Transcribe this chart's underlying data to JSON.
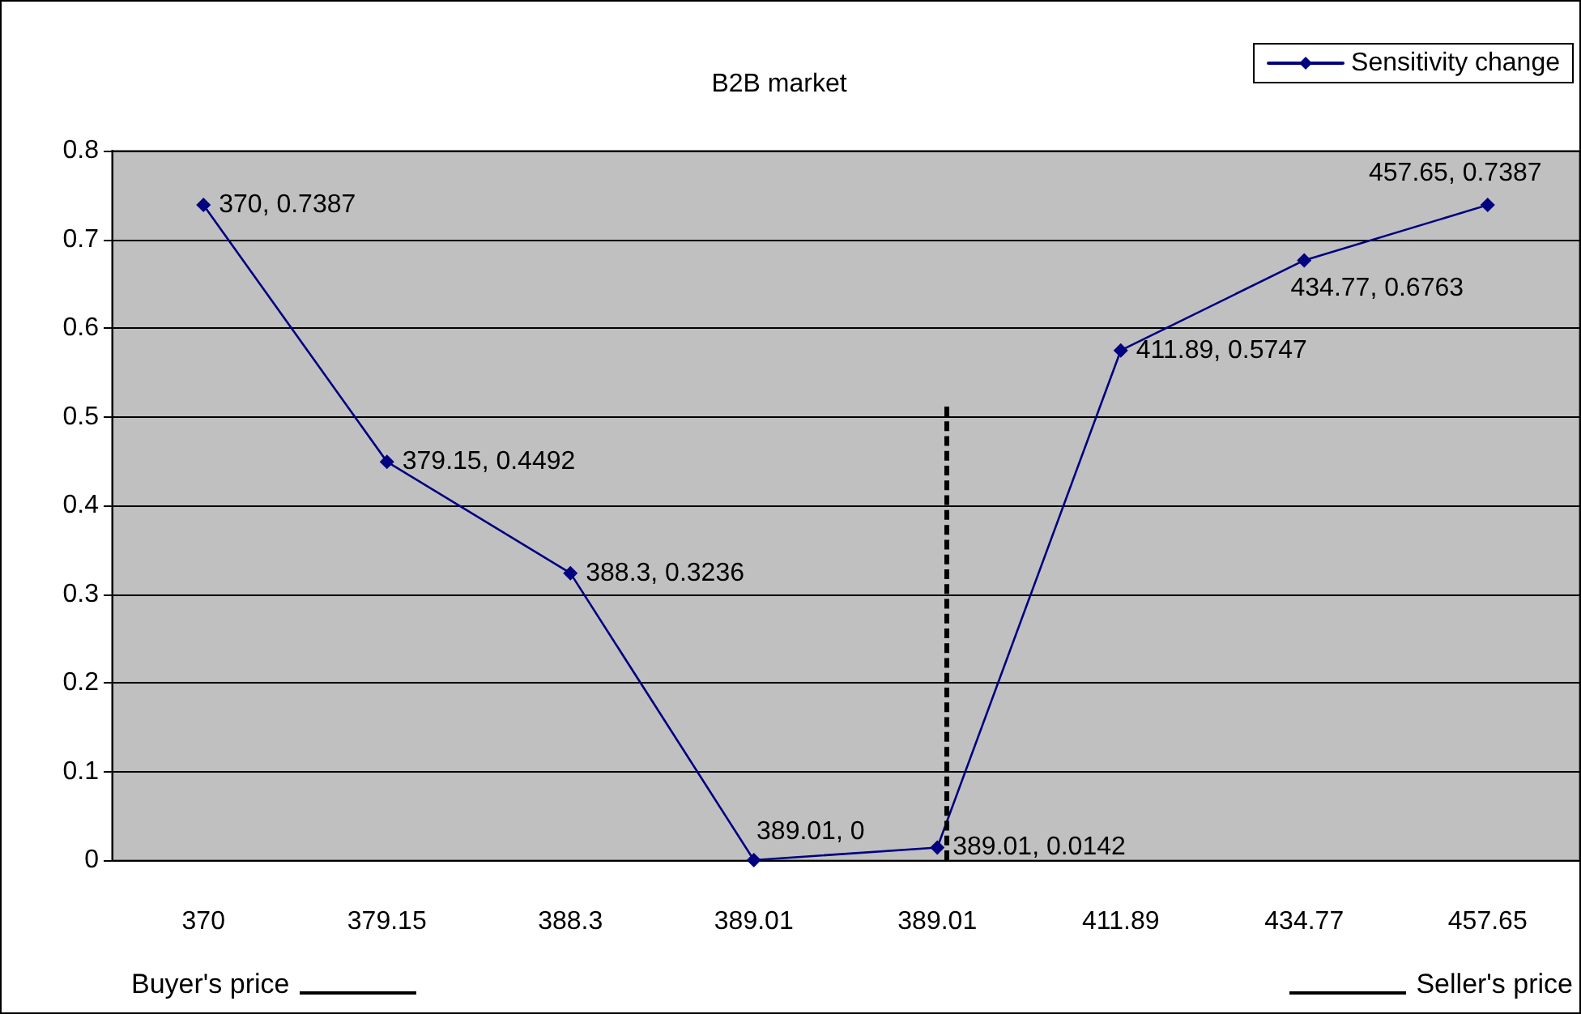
{
  "chart_data": {
    "type": "line",
    "title": "B2B market",
    "categories": [
      "370",
      "379.15",
      "388.3",
      "389.01",
      "389.01",
      "411.89",
      "434.77",
      "457.65"
    ],
    "series": [
      {
        "name": "Sensitivity change",
        "color": "#000080",
        "values": [
          0.7387,
          0.4492,
          0.3236,
          0,
          0.0142,
          0.5747,
          0.6763,
          0.7387
        ],
        "value_labels": [
          "370, 0.7387",
          "379.15, 0.4492",
          "388.3, 0.3236",
          "389.01, 0",
          "389.01, 0.0142",
          "411.89, 0.5747",
          "434.77, 0.6763",
          "457.65, 0.7387"
        ]
      }
    ],
    "ylim": [
      0,
      0.8
    ],
    "yticks": [
      0,
      0.1,
      0.2,
      0.3,
      0.4,
      0.5,
      0.6,
      0.7,
      0.8
    ],
    "grid": "y",
    "legend": "top right",
    "marker": "diamond",
    "line_style": "solid",
    "annotations": [
      "Buyer's price",
      "Seller's price"
    ]
  }
}
